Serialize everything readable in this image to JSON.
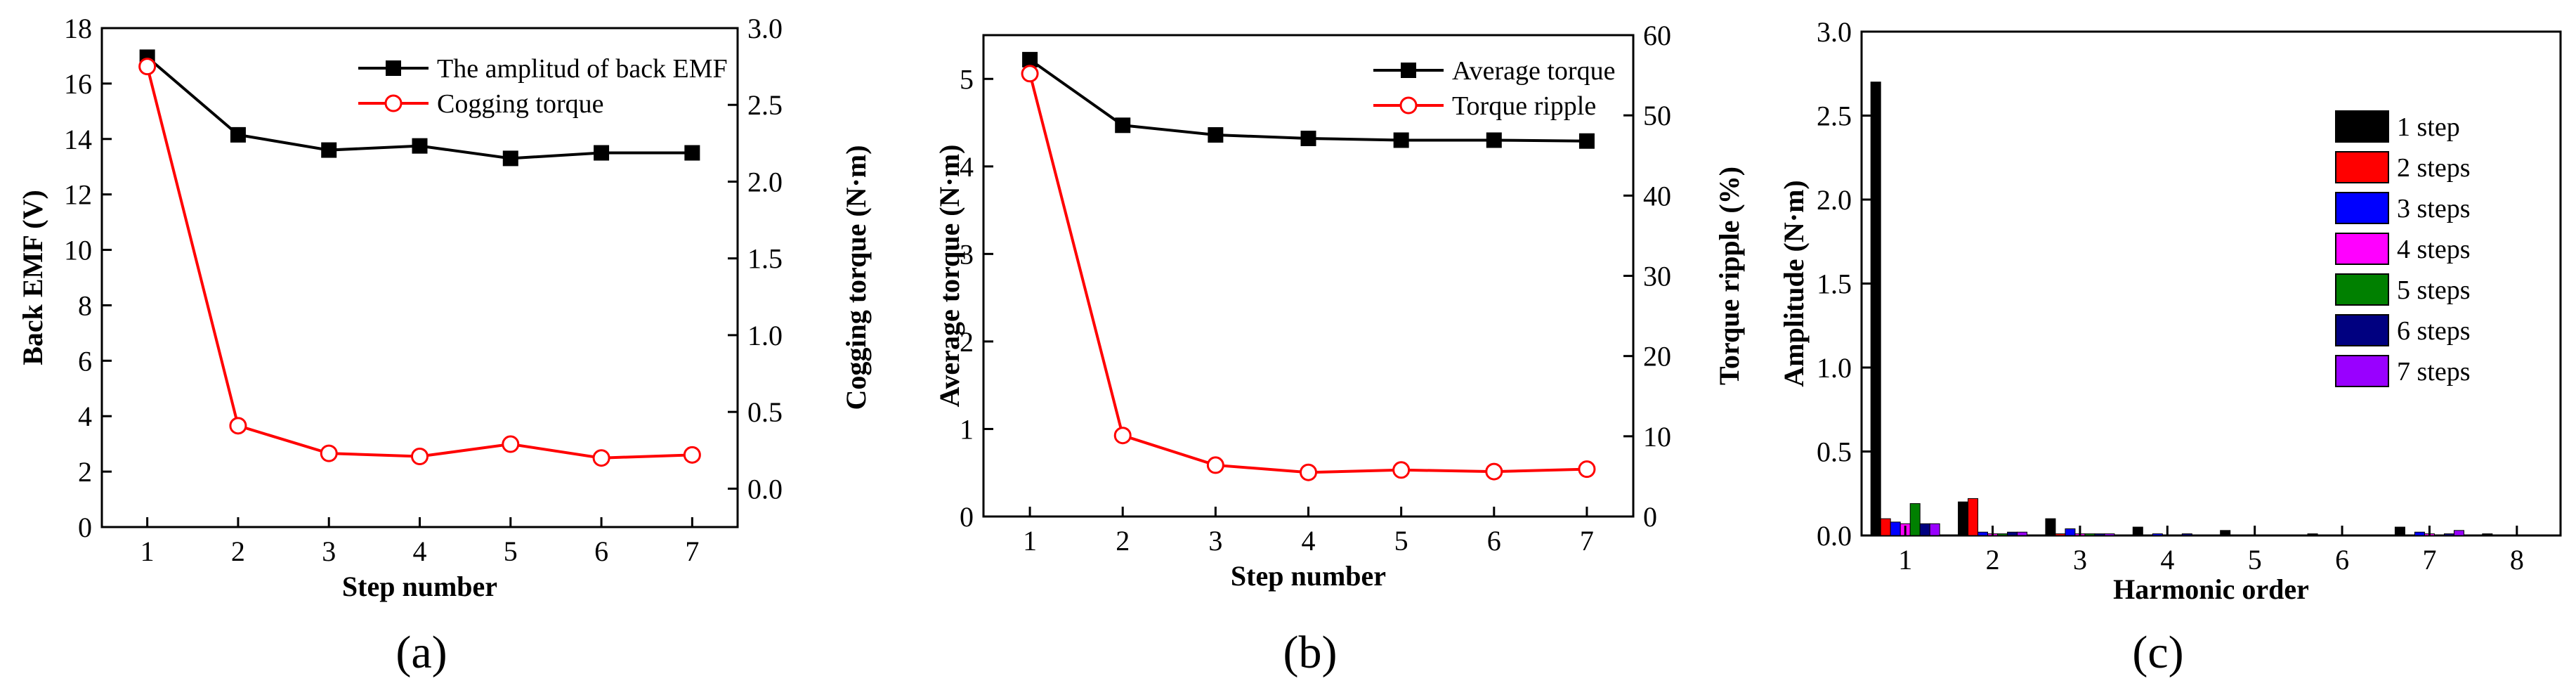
{
  "chart_data": [
    {
      "id": "a",
      "type": "line",
      "panel_label": "(a)",
      "xlabel": "Step number",
      "ylabel_left": "Back EMF (V)",
      "ylabel_right": "Cogging torque (N·m)",
      "x": [
        1,
        2,
        3,
        4,
        5,
        6,
        7
      ],
      "xlim": [
        0.5,
        7.5
      ],
      "xticks": [
        1,
        2,
        3,
        4,
        5,
        6,
        7
      ],
      "ylim_left": [
        0,
        18
      ],
      "yticks_left": [
        0,
        2,
        4,
        6,
        8,
        10,
        12,
        14,
        16,
        18
      ],
      "ylim_right": [
        -0.25,
        3.0
      ],
      "yticks_right": [
        "0.0",
        "0.5",
        "1.0",
        "1.5",
        "2.0",
        "2.5",
        "3.0"
      ],
      "legend_position": "top-right",
      "series": [
        {
          "name": "The amplitud of back EMF",
          "axis": "left",
          "color": "#000000",
          "marker": "filled-square",
          "values": [
            16.95,
            14.15,
            13.6,
            13.75,
            13.3,
            13.5,
            13.5
          ]
        },
        {
          "name": "Cogging torque",
          "axis": "right",
          "color": "#ff0000",
          "marker": "open-circle",
          "values": [
            2.75,
            0.41,
            0.23,
            0.21,
            0.29,
            0.2,
            0.22
          ]
        }
      ]
    },
    {
      "id": "b",
      "type": "line",
      "panel_label": "(b)",
      "xlabel": "Step number",
      "ylabel_left": "Average torque (N·m)",
      "ylabel_right": "Torque ripple (%)",
      "x": [
        1,
        2,
        3,
        4,
        5,
        6,
        7
      ],
      "xlim": [
        0.5,
        7.5
      ],
      "xticks": [
        1,
        2,
        3,
        4,
        5,
        6,
        7
      ],
      "ylim_left": [
        0,
        5.5
      ],
      "yticks_left": [
        0,
        1,
        2,
        3,
        4,
        5
      ],
      "ylim_right": [
        0,
        60
      ],
      "yticks_right": [
        0,
        10,
        20,
        30,
        40,
        50,
        60
      ],
      "legend_position": "top-right",
      "series": [
        {
          "name": "Average torque",
          "axis": "left",
          "color": "#000000",
          "marker": "filled-square",
          "values": [
            5.22,
            4.47,
            4.36,
            4.32,
            4.3,
            4.3,
            4.29
          ]
        },
        {
          "name": "Torque ripple",
          "axis": "right",
          "color": "#ff0000",
          "marker": "open-circle",
          "values": [
            55.2,
            10.1,
            6.4,
            5.5,
            5.8,
            5.6,
            5.9
          ]
        }
      ]
    },
    {
      "id": "c",
      "type": "bar",
      "panel_label": "(c)",
      "xlabel": "Harmonic order",
      "ylabel": "Amplitude (N·m)",
      "categories": [
        "1",
        "2",
        "3",
        "4",
        "5",
        "6",
        "7",
        "8"
      ],
      "xlim": [
        0.5,
        8.5
      ],
      "ylim": [
        0,
        3.0
      ],
      "yticks": [
        "0.0",
        "0.5",
        "1.0",
        "1.5",
        "2.0",
        "2.5",
        "3.0"
      ],
      "legend_position": "top-right",
      "series": [
        {
          "name": "1 step",
          "color": "#000000",
          "values": [
            2.7,
            0.2,
            0.1,
            0.05,
            0.03,
            0.01,
            0.05,
            0.01
          ]
        },
        {
          "name": "2 steps",
          "color": "#ff0000",
          "values": [
            0.1,
            0.22,
            0.01,
            0.0,
            0.0,
            0.0,
            0.0,
            0.0
          ]
        },
        {
          "name": "3 steps",
          "color": "#0000ff",
          "values": [
            0.08,
            0.02,
            0.04,
            0.01,
            0.0,
            0.0,
            0.02,
            0.0
          ]
        },
        {
          "name": "4 steps",
          "color": "#ff00ff",
          "values": [
            0.07,
            0.01,
            0.01,
            0.0,
            0.0,
            0.0,
            0.01,
            0.0
          ]
        },
        {
          "name": "5 steps",
          "color": "#008000",
          "values": [
            0.19,
            0.01,
            0.01,
            0.0,
            0.0,
            0.0,
            0.0,
            0.0
          ]
        },
        {
          "name": "6 steps",
          "color": "#000080",
          "values": [
            0.07,
            0.02,
            0.01,
            0.01,
            0.0,
            0.0,
            0.01,
            0.0
          ]
        },
        {
          "name": "7 steps",
          "color": "#9900ff",
          "values": [
            0.07,
            0.02,
            0.01,
            0.0,
            0.0,
            0.0,
            0.03,
            0.0
          ]
        }
      ]
    }
  ]
}
